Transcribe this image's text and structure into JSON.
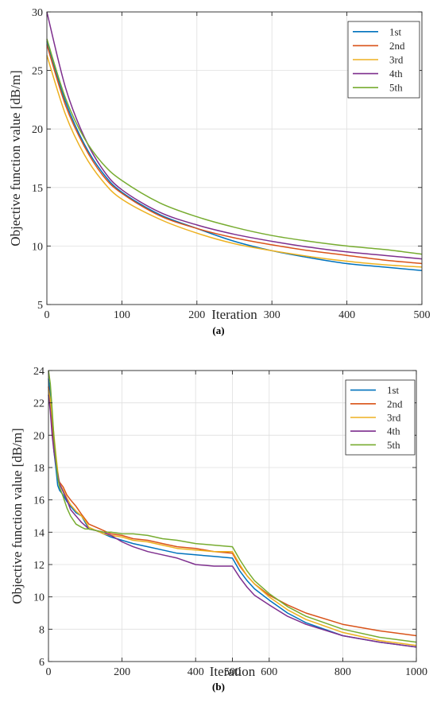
{
  "chart_data": [
    {
      "type": "line",
      "panel_label": "(a)",
      "xlabel": "Iteration",
      "ylabel": "Objective function value [dB/m]",
      "xlim": [
        0,
        500
      ],
      "ylim": [
        5,
        30
      ],
      "xticks": [
        0,
        100,
        200,
        300,
        400,
        500
      ],
      "yticks": [
        5,
        10,
        15,
        20,
        25,
        30
      ],
      "grid": true,
      "legend_position": "top-right",
      "x": [
        0,
        25,
        50,
        75,
        100,
        150,
        200,
        250,
        300,
        350,
        400,
        450,
        500
      ],
      "series": [
        {
          "name": "1st",
          "color": "#0072BD",
          "values": [
            27.5,
            22.3,
            18.7,
            16.2,
            14.6,
            12.7,
            11.5,
            10.4,
            9.6,
            9.0,
            8.5,
            8.2,
            7.9
          ]
        },
        {
          "name": "2nd",
          "color": "#D95319",
          "values": [
            27.2,
            22.0,
            18.5,
            16.0,
            14.5,
            12.6,
            11.5,
            10.7,
            10.1,
            9.6,
            9.2,
            8.8,
            8.5
          ]
        },
        {
          "name": "3rd",
          "color": "#EDB120",
          "values": [
            26.3,
            21.2,
            17.8,
            15.5,
            14.0,
            12.3,
            11.1,
            10.2,
            9.6,
            9.1,
            8.7,
            8.4,
            8.2
          ]
        },
        {
          "name": "4th",
          "color": "#7E2F8E",
          "values": [
            30.0,
            23.5,
            19.3,
            16.5,
            14.8,
            12.9,
            11.8,
            11.0,
            10.4,
            9.9,
            9.5,
            9.2,
            8.9
          ]
        },
        {
          "name": "5th",
          "color": "#77AC30",
          "values": [
            27.7,
            22.6,
            19.2,
            17.0,
            15.6,
            13.7,
            12.5,
            11.6,
            10.9,
            10.4,
            10.0,
            9.7,
            9.3
          ]
        }
      ]
    },
    {
      "type": "line",
      "panel_label": "(b)",
      "xlabel": "Iteration",
      "ylabel": "Objective function value [dB/m]",
      "xlim": [
        0,
        1000
      ],
      "ylim": [
        6,
        24
      ],
      "xticks": [
        0,
        200,
        400,
        500,
        600,
        800,
        1000
      ],
      "yticks": [
        6,
        8,
        10,
        12,
        14,
        16,
        18,
        20,
        22,
        24
      ],
      "grid": true,
      "legend_position": "top-right",
      "series": [
        {
          "name": "1st",
          "color": "#0072BD",
          "points": [
            [
              0,
              23.5
            ],
            [
              5,
              22.6
            ],
            [
              10,
              20.5
            ],
            [
              15,
              19.0
            ],
            [
              20,
              18.0
            ],
            [
              25,
              16.9
            ],
            [
              30,
              16.6
            ],
            [
              40,
              16.3
            ],
            [
              50,
              15.9
            ],
            [
              60,
              15.6
            ],
            [
              75,
              15.2
            ],
            [
              90,
              15.0
            ],
            [
              100,
              14.6
            ],
            [
              110,
              14.2
            ],
            [
              130,
              14.1
            ],
            [
              150,
              13.9
            ],
            [
              170,
              13.7
            ],
            [
              200,
              13.5
            ],
            [
              230,
              13.3
            ],
            [
              270,
              13.1
            ],
            [
              310,
              12.9
            ],
            [
              350,
              12.7
            ],
            [
              400,
              12.6
            ],
            [
              450,
              12.5
            ],
            [
              500,
              12.4
            ],
            [
              520,
              11.6
            ],
            [
              540,
              11.0
            ],
            [
              560,
              10.5
            ],
            [
              600,
              9.8
            ],
            [
              650,
              9.0
            ],
            [
              700,
              8.4
            ],
            [
              800,
              7.6
            ],
            [
              900,
              7.2
            ],
            [
              1000,
              6.9
            ]
          ]
        },
        {
          "name": "2nd",
          "color": "#D95319",
          "points": [
            [
              0,
              23.0
            ],
            [
              5,
              22.0
            ],
            [
              10,
              20.6
            ],
            [
              15,
              19.5
            ],
            [
              20,
              18.4
            ],
            [
              25,
              17.5
            ],
            [
              30,
              17.1
            ],
            [
              40,
              16.8
            ],
            [
              50,
              16.3
            ],
            [
              60,
              16.0
            ],
            [
              75,
              15.6
            ],
            [
              90,
              15.1
            ],
            [
              100,
              14.8
            ],
            [
              110,
              14.5
            ],
            [
              130,
              14.3
            ],
            [
              150,
              14.1
            ],
            [
              170,
              13.9
            ],
            [
              200,
              13.8
            ],
            [
              230,
              13.6
            ],
            [
              270,
              13.5
            ],
            [
              310,
              13.3
            ],
            [
              350,
              13.1
            ],
            [
              400,
              13.0
            ],
            [
              450,
              12.8
            ],
            [
              500,
              12.7
            ],
            [
              520,
              11.9
            ],
            [
              540,
              11.3
            ],
            [
              560,
              10.8
            ],
            [
              600,
              10.1
            ],
            [
              650,
              9.5
            ],
            [
              700,
              9.0
            ],
            [
              800,
              8.3
            ],
            [
              900,
              7.9
            ],
            [
              1000,
              7.6
            ]
          ]
        },
        {
          "name": "3rd",
          "color": "#EDB120",
          "points": [
            [
              0,
              22.8
            ],
            [
              5,
              22.2
            ],
            [
              10,
              21.2
            ],
            [
              15,
              20.0
            ],
            [
              20,
              18.8
            ],
            [
              25,
              17.8
            ],
            [
              30,
              17.0
            ],
            [
              40,
              16.6
            ],
            [
              50,
              16.1
            ],
            [
              60,
              15.7
            ],
            [
              75,
              15.3
            ],
            [
              90,
              15.0
            ],
            [
              100,
              14.7
            ],
            [
              110,
              14.3
            ],
            [
              130,
              14.1
            ],
            [
              150,
              13.9
            ],
            [
              170,
              13.8
            ],
            [
              200,
              13.7
            ],
            [
              230,
              13.5
            ],
            [
              270,
              13.4
            ],
            [
              310,
              13.2
            ],
            [
              350,
              13.0
            ],
            [
              400,
              12.9
            ],
            [
              450,
              12.8
            ],
            [
              500,
              12.8
            ],
            [
              520,
              12.0
            ],
            [
              540,
              11.3
            ],
            [
              560,
              10.8
            ],
            [
              600,
              10.0
            ],
            [
              650,
              9.2
            ],
            [
              700,
              8.6
            ],
            [
              800,
              7.8
            ],
            [
              900,
              7.3
            ],
            [
              1000,
              7.0
            ]
          ]
        },
        {
          "name": "4th",
          "color": "#7E2F8E",
          "points": [
            [
              0,
              22.5
            ],
            [
              5,
              21.5
            ],
            [
              10,
              20.0
            ],
            [
              15,
              19.0
            ],
            [
              20,
              18.2
            ],
            [
              25,
              17.6
            ],
            [
              30,
              17.0
            ],
            [
              40,
              16.5
            ],
            [
              50,
              16.0
            ],
            [
              60,
              15.4
            ],
            [
              75,
              15.0
            ],
            [
              90,
              14.6
            ],
            [
              100,
              14.4
            ],
            [
              110,
              14.2
            ],
            [
              130,
              14.1
            ],
            [
              150,
              14.0
            ],
            [
              170,
              13.8
            ],
            [
              200,
              13.4
            ],
            [
              230,
              13.1
            ],
            [
              270,
              12.8
            ],
            [
              310,
              12.6
            ],
            [
              350,
              12.4
            ],
            [
              400,
              12.0
            ],
            [
              450,
              11.9
            ],
            [
              500,
              11.9
            ],
            [
              520,
              11.2
            ],
            [
              540,
              10.6
            ],
            [
              560,
              10.1
            ],
            [
              600,
              9.5
            ],
            [
              650,
              8.8
            ],
            [
              700,
              8.3
            ],
            [
              800,
              7.6
            ],
            [
              900,
              7.2
            ],
            [
              1000,
              6.9
            ]
          ]
        },
        {
          "name": "5th",
          "color": "#77AC30",
          "points": [
            [
              0,
              24.0
            ],
            [
              5,
              23.2
            ],
            [
              10,
              21.6
            ],
            [
              15,
              19.8
            ],
            [
              20,
              18.5
            ],
            [
              25,
              17.4
            ],
            [
              30,
              16.8
            ],
            [
              40,
              16.2
            ],
            [
              50,
              15.5
            ],
            [
              60,
              15.0
            ],
            [
              75,
              14.5
            ],
            [
              90,
              14.3
            ],
            [
              100,
              14.2
            ],
            [
              110,
              14.2
            ],
            [
              130,
              14.1
            ],
            [
              150,
              14.0
            ],
            [
              170,
              14.0
            ],
            [
              200,
              13.9
            ],
            [
              230,
              13.9
            ],
            [
              270,
              13.8
            ],
            [
              310,
              13.6
            ],
            [
              350,
              13.5
            ],
            [
              400,
              13.3
            ],
            [
              450,
              13.2
            ],
            [
              500,
              13.1
            ],
            [
              520,
              12.3
            ],
            [
              540,
              11.6
            ],
            [
              560,
              11.0
            ],
            [
              600,
              10.2
            ],
            [
              650,
              9.4
            ],
            [
              700,
              8.8
            ],
            [
              800,
              8.0
            ],
            [
              900,
              7.5
            ],
            [
              1000,
              7.2
            ]
          ]
        }
      ]
    }
  ]
}
